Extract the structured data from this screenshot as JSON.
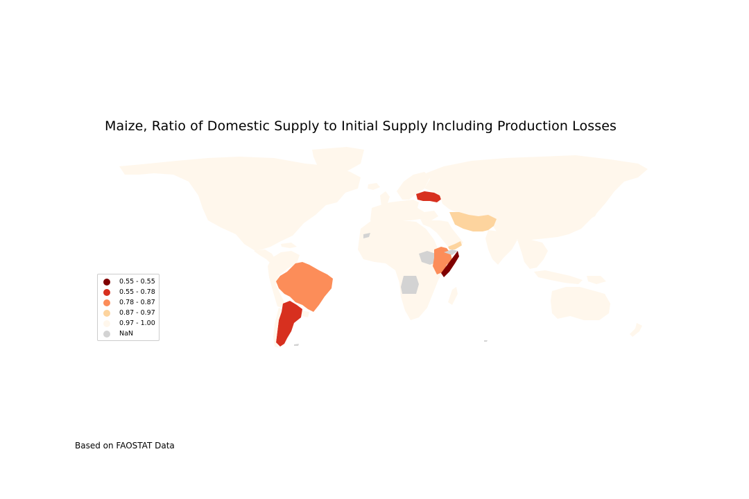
{
  "title": "Maize, Ratio of Domestic Supply to Initial Supply Including Production Losses",
  "source_note": "Based on FAOSTAT Data",
  "legend_items": [
    {
      "label": "0.55 - 0.55",
      "color": "#7f0000"
    },
    {
      "label": "0.55 - 0.78",
      "color": "#d7301f"
    },
    {
      "label": "0.78 - 0.87",
      "color": "#fc8d59"
    },
    {
      "label": "0.87 - 0.97",
      "color": "#fdd49e"
    },
    {
      "label": "0.97 - 1.00",
      "color": "#fff7ec"
    },
    {
      "label": "NaN",
      "color": "#d3d3d3"
    }
  ],
  "regions": [
    {
      "name": "north-america",
      "class_index": 4
    },
    {
      "name": "greenland",
      "class_index": 4
    },
    {
      "name": "central-america",
      "class_index": 4
    },
    {
      "name": "caribbean",
      "class_index": 4
    },
    {
      "name": "northern-south-america",
      "class_index": 4
    },
    {
      "name": "brazil",
      "class_index": 2
    },
    {
      "name": "argentina",
      "class_index": 1
    },
    {
      "name": "chile",
      "class_index": 4
    },
    {
      "name": "uruguay",
      "class_index": 4
    },
    {
      "name": "falklands",
      "class_index": 5
    },
    {
      "name": "europe",
      "class_index": 4
    },
    {
      "name": "uk-ireland",
      "class_index": 4
    },
    {
      "name": "iceland",
      "class_index": 4
    },
    {
      "name": "scandinavia",
      "class_index": 4
    },
    {
      "name": "ukraine",
      "class_index": 1
    },
    {
      "name": "russia-asia",
      "class_index": 4
    },
    {
      "name": "middle-east",
      "class_index": 4
    },
    {
      "name": "iran-afghanistan-pakistan",
      "class_index": 3
    },
    {
      "name": "yemen",
      "class_index": 3
    },
    {
      "name": "india",
      "class_index": 4
    },
    {
      "name": "southeast-asia",
      "class_index": 4
    },
    {
      "name": "japan",
      "class_index": 4
    },
    {
      "name": "indonesia",
      "class_index": 4
    },
    {
      "name": "africa",
      "class_index": 4
    },
    {
      "name": "western-sahara",
      "class_index": 5
    },
    {
      "name": "south-sudan",
      "class_index": 5
    },
    {
      "name": "ethiopia",
      "class_index": 2
    },
    {
      "name": "somaliland",
      "class_index": 5
    },
    {
      "name": "somalia",
      "class_index": 0
    },
    {
      "name": "angola",
      "class_index": 5
    },
    {
      "name": "madagascar",
      "class_index": 4
    },
    {
      "name": "australia",
      "class_index": 4
    },
    {
      "name": "new-zealand",
      "class_index": 4
    },
    {
      "name": "new-guinea",
      "class_index": 4
    },
    {
      "name": "south-georgia",
      "class_index": 5
    }
  ]
}
